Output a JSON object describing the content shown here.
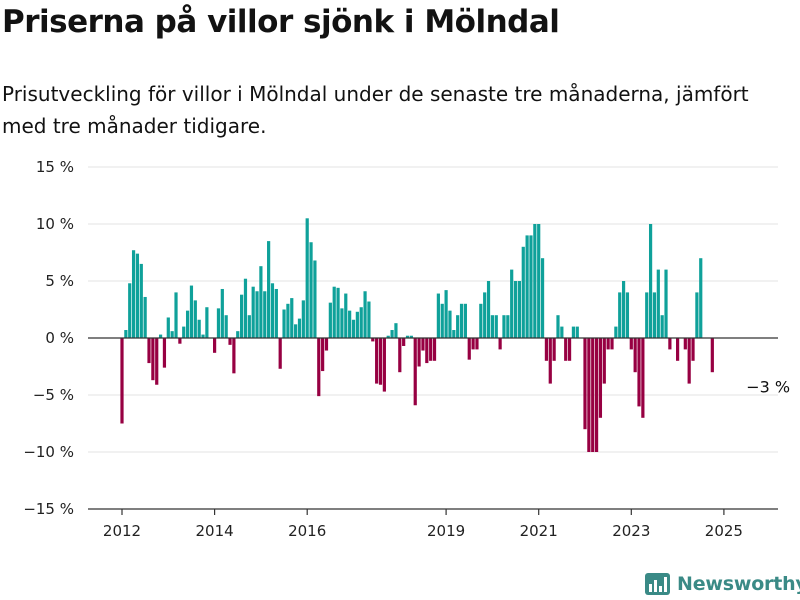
{
  "header": {
    "title": "Priserna på villor sjönk i Mölndal",
    "subtitle": "Prisutveckling för villor i Mölndal under de senaste tre månaderna, jämfört med tre månader tidigare."
  },
  "brand": {
    "name": "Newsworthy",
    "color": "#3a8a86"
  },
  "chart_data": {
    "type": "bar",
    "title": "Priserna på villor sjönk i Mölndal",
    "subtitle": "Prisutveckling för villor i Mölndal under de senaste tre månaderna, jämfört med tre månader tidigare.",
    "xlabel": "",
    "ylabel": "",
    "ylim": [
      -15,
      15
    ],
    "yticks": [
      15,
      10,
      5,
      0,
      -5,
      -10,
      -15
    ],
    "ytick_labels": [
      "15 %",
      "10 %",
      "5 %",
      "0 %",
      "−5 %",
      "−10 %",
      "−15 %"
    ],
    "xticks": [
      "2012",
      "2014",
      "2016",
      "2019",
      "2021",
      "2023",
      "2025"
    ],
    "grid": true,
    "colors": {
      "positive": "#0fa19a",
      "negative": "#970042"
    },
    "annotation": {
      "text": "−3 %",
      "month": "2025-06"
    },
    "series": [
      {
        "values": [
          {
            "month": "2012-01",
            "value": -7.5
          },
          {
            "month": "2012-02",
            "value": 0.7
          },
          {
            "month": "2012-03",
            "value": 4.8
          },
          {
            "month": "2012-04",
            "value": 7.7
          },
          {
            "month": "2012-05",
            "value": 7.4
          },
          {
            "month": "2012-06",
            "value": 6.5
          },
          {
            "month": "2012-07",
            "value": 3.6
          },
          {
            "month": "2012-08",
            "value": -2.2
          },
          {
            "month": "2012-09",
            "value": -3.7
          },
          {
            "month": "2012-10",
            "value": -4.1
          },
          {
            "month": "2012-11",
            "value": 0.3
          },
          {
            "month": "2012-12",
            "value": -2.6
          },
          {
            "month": "2013-01",
            "value": 1.8
          },
          {
            "month": "2013-02",
            "value": 0.6
          },
          {
            "month": "2013-03",
            "value": 4.0
          },
          {
            "month": "2013-04",
            "value": -0.5
          },
          {
            "month": "2013-05",
            "value": 1.0
          },
          {
            "month": "2013-06",
            "value": 2.4
          },
          {
            "month": "2013-07",
            "value": 4.6
          },
          {
            "month": "2013-08",
            "value": 3.3
          },
          {
            "month": "2013-09",
            "value": 1.6
          },
          {
            "month": "2013-10",
            "value": 0.3
          },
          {
            "month": "2013-11",
            "value": 2.7
          },
          {
            "month": "2014-01",
            "value": -1.3
          },
          {
            "month": "2014-02",
            "value": 2.6
          },
          {
            "month": "2014-03",
            "value": 4.3
          },
          {
            "month": "2014-04",
            "value": 2.0
          },
          {
            "month": "2014-05",
            "value": -0.6
          },
          {
            "month": "2014-06",
            "value": -3.1
          },
          {
            "month": "2014-07",
            "value": 0.6
          },
          {
            "month": "2014-08",
            "value": 3.8
          },
          {
            "month": "2014-09",
            "value": 5.2
          },
          {
            "month": "2014-10",
            "value": 2.0
          },
          {
            "month": "2014-11",
            "value": 4.5
          },
          {
            "month": "2014-12",
            "value": 4.1
          },
          {
            "month": "2015-01",
            "value": 6.3
          },
          {
            "month": "2015-02",
            "value": 4.1
          },
          {
            "month": "2015-03",
            "value": 8.5
          },
          {
            "month": "2015-04",
            "value": 4.8
          },
          {
            "month": "2015-05",
            "value": 4.3
          },
          {
            "month": "2015-06",
            "value": -2.7
          },
          {
            "month": "2015-07",
            "value": 2.5
          },
          {
            "month": "2015-08",
            "value": 3.0
          },
          {
            "month": "2015-09",
            "value": 3.5
          },
          {
            "month": "2015-10",
            "value": 1.2
          },
          {
            "month": "2015-11",
            "value": 1.7
          },
          {
            "month": "2015-12",
            "value": 3.3
          },
          {
            "month": "2016-01",
            "value": 10.5
          },
          {
            "month": "2016-02",
            "value": 8.4
          },
          {
            "month": "2016-03",
            "value": 6.8
          },
          {
            "month": "2016-04",
            "value": -5.1
          },
          {
            "month": "2016-05",
            "value": -2.9
          },
          {
            "month": "2016-06",
            "value": -1.1
          },
          {
            "month": "2016-07",
            "value": 3.1
          },
          {
            "month": "2016-08",
            "value": 4.5
          },
          {
            "month": "2016-09",
            "value": 4.4
          },
          {
            "month": "2016-10",
            "value": 2.6
          },
          {
            "month": "2016-11",
            "value": 3.9
          },
          {
            "month": "2016-12",
            "value": 2.4
          },
          {
            "month": "2017-01",
            "value": 1.6
          },
          {
            "month": "2017-02",
            "value": 2.3
          },
          {
            "month": "2017-03",
            "value": 2.7
          },
          {
            "month": "2017-04",
            "value": 4.1
          },
          {
            "month": "2017-05",
            "value": 3.2
          },
          {
            "month": "2017-06",
            "value": -0.3
          },
          {
            "month": "2017-07",
            "value": -4.0
          },
          {
            "month": "2017-08",
            "value": -4.1
          },
          {
            "month": "2017-09",
            "value": -4.7
          },
          {
            "month": "2017-10",
            "value": 0.2
          },
          {
            "month": "2017-11",
            "value": 0.7
          },
          {
            "month": "2017-12",
            "value": 1.3
          },
          {
            "month": "2018-01",
            "value": -3.0
          },
          {
            "month": "2018-02",
            "value": -0.7
          },
          {
            "month": "2018-03",
            "value": 0.2
          },
          {
            "month": "2018-04",
            "value": 0.2
          },
          {
            "month": "2018-05",
            "value": -5.9
          },
          {
            "month": "2018-06",
            "value": -2.5
          },
          {
            "month": "2018-07",
            "value": -1.1
          },
          {
            "month": "2018-08",
            "value": -2.2
          },
          {
            "month": "2018-09",
            "value": -2.0
          },
          {
            "month": "2018-10",
            "value": -2.0
          },
          {
            "month": "2018-11",
            "value": 3.9
          },
          {
            "month": "2018-12",
            "value": 3.0
          },
          {
            "month": "2019-01",
            "value": 4.2
          },
          {
            "month": "2019-02",
            "value": 2.4
          },
          {
            "month": "2019-03",
            "value": 0.7
          },
          {
            "month": "2019-04",
            "value": 2.0
          },
          {
            "month": "2019-05",
            "value": 3.0
          },
          {
            "month": "2019-06",
            "value": 3.0
          },
          {
            "month": "2019-07",
            "value": -1.9
          },
          {
            "month": "2019-08",
            "value": -1.0
          },
          {
            "month": "2019-09",
            "value": -1.0
          },
          {
            "month": "2019-10",
            "value": 3.0
          },
          {
            "month": "2019-11",
            "value": 4.0
          },
          {
            "month": "2019-12",
            "value": 5.0
          },
          {
            "month": "2020-01",
            "value": 2.0
          },
          {
            "month": "2020-02",
            "value": 2.0
          },
          {
            "month": "2020-03",
            "value": -1.0
          },
          {
            "month": "2020-04",
            "value": 2.0
          },
          {
            "month": "2020-05",
            "value": 2.0
          },
          {
            "month": "2020-06",
            "value": 6.0
          },
          {
            "month": "2020-07",
            "value": 5.0
          },
          {
            "month": "2020-08",
            "value": 5.0
          },
          {
            "month": "2020-09",
            "value": 8.0
          },
          {
            "month": "2020-10",
            "value": 9.0
          },
          {
            "month": "2020-11",
            "value": 9.0
          },
          {
            "month": "2020-12",
            "value": 10.0
          },
          {
            "month": "2021-01",
            "value": 10.0
          },
          {
            "month": "2021-02",
            "value": 7.0
          },
          {
            "month": "2021-03",
            "value": -2.0
          },
          {
            "month": "2021-04",
            "value": -4.0
          },
          {
            "month": "2021-05",
            "value": -2.0
          },
          {
            "month": "2021-06",
            "value": 2.0
          },
          {
            "month": "2021-07",
            "value": 1.0
          },
          {
            "month": "2021-08",
            "value": -2.0
          },
          {
            "month": "2021-09",
            "value": -2.0
          },
          {
            "month": "2021-10",
            "value": 1.0
          },
          {
            "month": "2021-11",
            "value": 1.0
          },
          {
            "month": "2022-01",
            "value": -8.0
          },
          {
            "month": "2022-02",
            "value": -10.0
          },
          {
            "month": "2022-03",
            "value": -10.0
          },
          {
            "month": "2022-04",
            "value": -10.0
          },
          {
            "month": "2022-05",
            "value": -7.0
          },
          {
            "month": "2022-06",
            "value": -4.0
          },
          {
            "month": "2022-07",
            "value": -1.0
          },
          {
            "month": "2022-08",
            "value": -1.0
          },
          {
            "month": "2022-09",
            "value": 1.0
          },
          {
            "month": "2022-10",
            "value": 4.0
          },
          {
            "month": "2022-11",
            "value": 5.0
          },
          {
            "month": "2022-12",
            "value": 4.0
          },
          {
            "month": "2023-01",
            "value": -1.0
          },
          {
            "month": "2023-02",
            "value": -3.0
          },
          {
            "month": "2023-03",
            "value": -6.0
          },
          {
            "month": "2023-04",
            "value": -7.0
          },
          {
            "month": "2023-05",
            "value": 4.0
          },
          {
            "month": "2023-06",
            "value": 10.0
          },
          {
            "month": "2023-07",
            "value": 4.0
          },
          {
            "month": "2023-08",
            "value": 6.0
          },
          {
            "month": "2023-09",
            "value": 2.0
          },
          {
            "month": "2023-10",
            "value": 6.0
          },
          {
            "month": "2023-11",
            "value": -1.0
          },
          {
            "month": "2024-01",
            "value": -2.0
          },
          {
            "month": "2024-03",
            "value": -1.0
          },
          {
            "month": "2024-04",
            "value": -4.0
          },
          {
            "month": "2024-05",
            "value": -2.0
          },
          {
            "month": "2024-06",
            "value": 4.0
          },
          {
            "month": "2024-07",
            "value": 7.0
          },
          {
            "month": "2024-10",
            "value": -3.0
          }
        ]
      }
    ]
  }
}
